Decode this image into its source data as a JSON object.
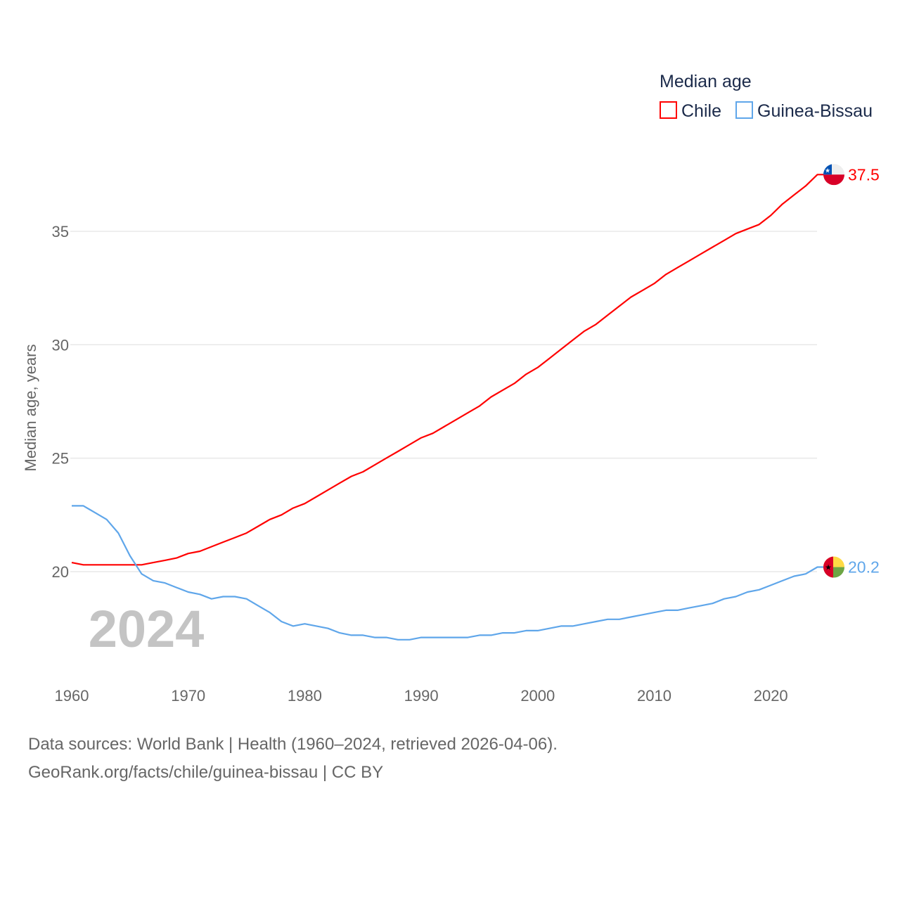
{
  "chart_data": {
    "type": "line",
    "title": "Median age",
    "xlabel": "",
    "ylabel": "Median age, years",
    "xlim": [
      1960,
      2024
    ],
    "ylim": [
      16.5,
      38
    ],
    "grid": true,
    "legend_placement": "top-right",
    "x_ticks": [
      "1960",
      "1970",
      "1980",
      "1990",
      "2000",
      "2010",
      "2020"
    ],
    "y_ticks": [
      "20",
      "25",
      "30",
      "35"
    ],
    "year_label": "2024",
    "x": [
      1960,
      1961,
      1962,
      1963,
      1964,
      1965,
      1966,
      1967,
      1968,
      1969,
      1970,
      1971,
      1972,
      1973,
      1974,
      1975,
      1976,
      1977,
      1978,
      1979,
      1980,
      1981,
      1982,
      1983,
      1984,
      1985,
      1986,
      1987,
      1988,
      1989,
      1990,
      1991,
      1992,
      1993,
      1994,
      1995,
      1996,
      1997,
      1998,
      1999,
      2000,
      2001,
      2002,
      2003,
      2004,
      2005,
      2006,
      2007,
      2008,
      2009,
      2010,
      2011,
      2012,
      2013,
      2014,
      2015,
      2016,
      2017,
      2018,
      2019,
      2020,
      2021,
      2022,
      2023,
      2024
    ],
    "series": [
      {
        "name": "Chile",
        "color": "#ff0000",
        "end_label": "37.5",
        "values": [
          20.4,
          20.3,
          20.3,
          20.3,
          20.3,
          20.3,
          20.3,
          20.4,
          20.5,
          20.6,
          20.8,
          20.9,
          21.1,
          21.3,
          21.5,
          21.7,
          22.0,
          22.3,
          22.5,
          22.8,
          23.0,
          23.3,
          23.6,
          23.9,
          24.2,
          24.4,
          24.7,
          25.0,
          25.3,
          25.6,
          25.9,
          26.1,
          26.4,
          26.7,
          27.0,
          27.3,
          27.7,
          28.0,
          28.3,
          28.7,
          29.0,
          29.4,
          29.8,
          30.2,
          30.6,
          30.9,
          31.3,
          31.7,
          32.1,
          32.4,
          32.7,
          33.1,
          33.4,
          33.7,
          34.0,
          34.3,
          34.6,
          34.9,
          35.1,
          35.3,
          35.7,
          36.2,
          36.6,
          37.0,
          37.5
        ]
      },
      {
        "name": "Guinea-Bissau",
        "color": "#5fa6ea",
        "end_label": "20.2",
        "values": [
          22.9,
          22.9,
          22.6,
          22.3,
          21.7,
          20.7,
          19.9,
          19.6,
          19.5,
          19.3,
          19.1,
          19.0,
          18.8,
          18.9,
          18.9,
          18.8,
          18.5,
          18.2,
          17.8,
          17.6,
          17.7,
          17.6,
          17.5,
          17.3,
          17.2,
          17.2,
          17.1,
          17.1,
          17.0,
          17.0,
          17.1,
          17.1,
          17.1,
          17.1,
          17.1,
          17.2,
          17.2,
          17.3,
          17.3,
          17.4,
          17.4,
          17.5,
          17.6,
          17.6,
          17.7,
          17.8,
          17.9,
          17.9,
          18.0,
          18.1,
          18.2,
          18.3,
          18.3,
          18.4,
          18.5,
          18.6,
          18.8,
          18.9,
          19.1,
          19.2,
          19.4,
          19.6,
          19.8,
          19.9,
          20.2
        ]
      }
    ]
  },
  "footer": {
    "sources": "Data sources: World Bank | Health (1960–2024, retrieved 2026-04-06).",
    "credit": "GeoRank.org/facts/chile/guinea-bissau | CC BY"
  }
}
